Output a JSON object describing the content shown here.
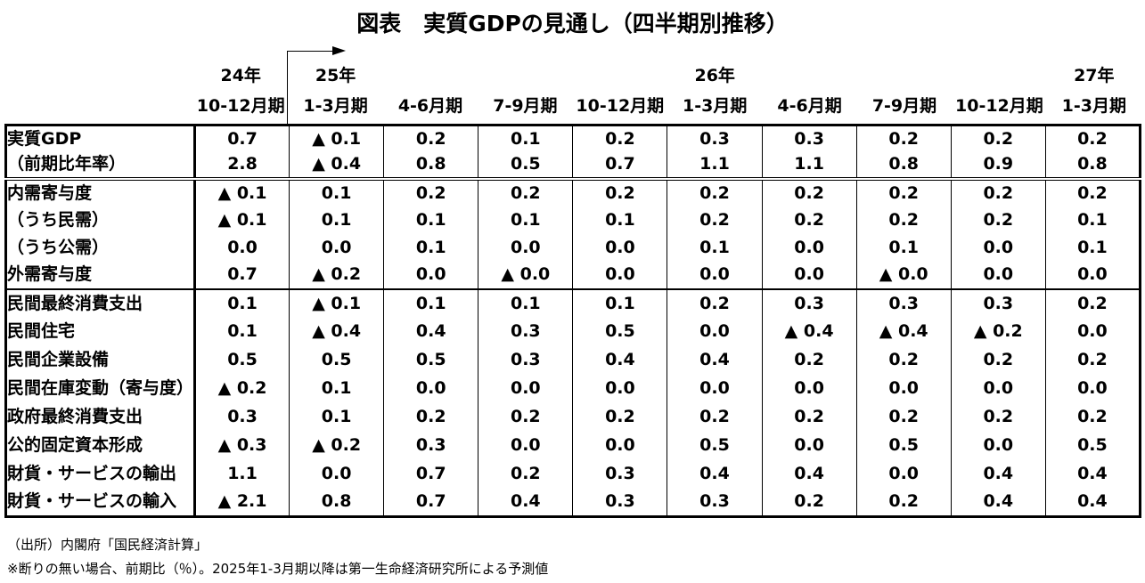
{
  "title": "図表　実質GDPの見通し（四半期別推移）",
  "header": {
    "years": [
      {
        "label": "24年",
        "column": 1
      },
      {
        "label": "25年",
        "column": 2
      },
      {
        "label": "26年",
        "column": 6
      },
      {
        "label": "27年",
        "column": 10
      }
    ],
    "quarters": [
      "10-12月期",
      "1-3月期",
      "4-6月期",
      "7-9月期",
      "10-12月期",
      "1-3月期",
      "4-6月期",
      "7-9月期",
      "10-12月期",
      "1-3月期"
    ],
    "forecast_arrow_start_column": 2
  },
  "chart_data": {
    "type": "table",
    "columns": [
      "24年10-12月期",
      "25年1-3月期",
      "25年4-6月期",
      "25年7-9月期",
      "25年10-12月期",
      "26年1-3月期",
      "26年4-6月期",
      "26年7-9月期",
      "26年10-12月期",
      "27年1-3月期"
    ],
    "negative_marker": "▲",
    "rows": [
      {
        "label": "実質GDP",
        "align": "left",
        "values": [
          "0.7",
          "▲ 0.1",
          "0.2",
          "0.1",
          "0.2",
          "0.3",
          "0.3",
          "0.2",
          "0.2",
          "0.2"
        ]
      },
      {
        "label": "（前期比年率）",
        "align": "right",
        "values": [
          "2.8",
          "▲ 0.4",
          "0.8",
          "0.5",
          "0.7",
          "1.1",
          "1.1",
          "0.8",
          "0.9",
          "0.8"
        ]
      },
      {
        "label": "内需寄与度",
        "align": "indent",
        "values": [
          "▲ 0.1",
          "0.1",
          "0.2",
          "0.2",
          "0.2",
          "0.2",
          "0.2",
          "0.2",
          "0.2",
          "0.2"
        ]
      },
      {
        "label": "（うち民需）",
        "align": "indent2",
        "values": [
          "▲ 0.1",
          "0.1",
          "0.1",
          "0.1",
          "0.1",
          "0.2",
          "0.2",
          "0.2",
          "0.2",
          "0.1"
        ]
      },
      {
        "label": "（うち公需）",
        "align": "indent2",
        "values": [
          "0.0",
          "0.0",
          "0.1",
          "0.0",
          "0.0",
          "0.1",
          "0.0",
          "0.1",
          "0.0",
          "0.1"
        ]
      },
      {
        "label": "外需寄与度",
        "align": "indent",
        "values": [
          "0.7",
          "▲ 0.2",
          "0.0",
          "▲ 0.0",
          "0.0",
          "0.0",
          "0.0",
          "▲ 0.0",
          "0.0",
          "0.0"
        ]
      },
      {
        "label": "民間最終消費支出",
        "align": "left",
        "values": [
          "0.1",
          "▲ 0.1",
          "0.1",
          "0.1",
          "0.1",
          "0.2",
          "0.3",
          "0.3",
          "0.3",
          "0.2"
        ]
      },
      {
        "label": "民間住宅",
        "align": "left",
        "values": [
          "0.1",
          "▲ 0.4",
          "0.4",
          "0.3",
          "0.5",
          "0.0",
          "▲ 0.4",
          "▲ 0.4",
          "▲ 0.2",
          "0.0"
        ]
      },
      {
        "label": "民間企業設備",
        "align": "left",
        "values": [
          "0.5",
          "0.5",
          "0.5",
          "0.3",
          "0.4",
          "0.4",
          "0.2",
          "0.2",
          "0.2",
          "0.2"
        ]
      },
      {
        "label": "民間在庫変動（寄与度）",
        "align": "left",
        "values": [
          "▲ 0.2",
          "0.1",
          "0.0",
          "0.0",
          "0.0",
          "0.0",
          "0.0",
          "0.0",
          "0.0",
          "0.0"
        ]
      },
      {
        "label": "政府最終消費支出",
        "align": "left",
        "values": [
          "0.3",
          "0.1",
          "0.2",
          "0.2",
          "0.2",
          "0.2",
          "0.2",
          "0.2",
          "0.2",
          "0.2"
        ]
      },
      {
        "label": "公的固定資本形成",
        "align": "left",
        "values": [
          "▲ 0.3",
          "▲ 0.2",
          "0.3",
          "0.0",
          "0.0",
          "0.5",
          "0.0",
          "0.5",
          "0.0",
          "0.5"
        ]
      },
      {
        "label": "財貨・サービスの輸出",
        "align": "left",
        "values": [
          "1.1",
          "0.0",
          "0.7",
          "0.2",
          "0.3",
          "0.4",
          "0.4",
          "0.0",
          "0.4",
          "0.4"
        ]
      },
      {
        "label": "財貨・サービスの輸入",
        "align": "left",
        "values": [
          "▲ 2.1",
          "0.8",
          "0.7",
          "0.4",
          "0.3",
          "0.3",
          "0.2",
          "0.2",
          "0.4",
          "0.4"
        ]
      }
    ]
  },
  "footer": {
    "source": "（出所）内閣府「国民経済計算」",
    "note": "※断りの無い場合、前期比（％）。2025年1-3月期以降は第一生命経済研究所による予測値"
  }
}
